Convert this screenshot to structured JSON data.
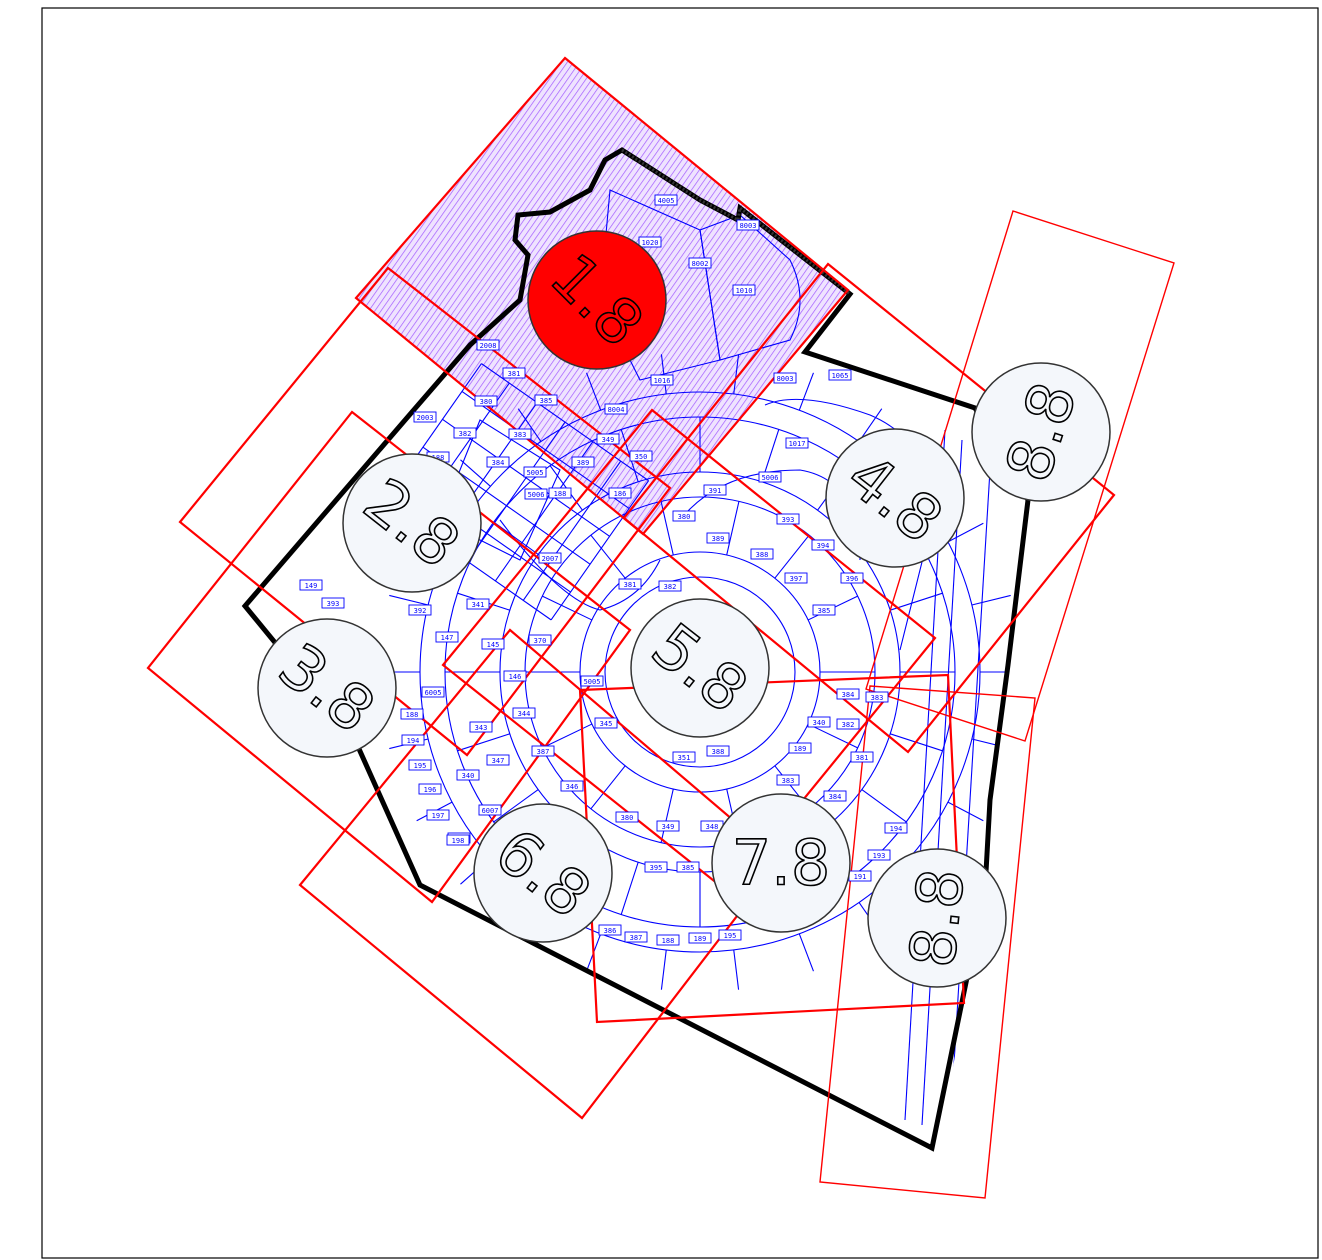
{
  "map": {
    "colors": {
      "paper": "#ffffff",
      "frame": "#000000",
      "boundary": "#000000",
      "parcel": "#0000ff",
      "sheet_outline": "#ff0000",
      "highlight_fill": "#cc66ff",
      "active_bubble": "#ff0000",
      "bubble": "#f4f7fb"
    },
    "sheets": [
      {
        "label": "1.8",
        "active": true
      },
      {
        "label": "2.8",
        "active": false
      },
      {
        "label": "3.8",
        "active": false
      },
      {
        "label": "4.8",
        "active": false
      },
      {
        "label": "5.8",
        "active": false
      },
      {
        "label": "6.8",
        "active": false
      },
      {
        "label": "7.8",
        "active": false
      },
      {
        "label": "8.8",
        "active": false
      },
      {
        "label": "8.8",
        "active": false
      }
    ],
    "lot_labels": [
      "4005",
      "8003",
      "1020",
      "8002",
      "1010",
      "1016",
      "8003",
      "1065",
      "2008",
      "381",
      "380",
      "385",
      "8004",
      "2003",
      "382",
      "383",
      "350",
      "349",
      "384",
      "5005",
      "188",
      "389",
      "188",
      "186",
      "5006",
      "391",
      "380",
      "1017",
      "393",
      "389",
      "388",
      "394",
      "397",
      "396",
      "385",
      "5006",
      "2007",
      "381",
      "382",
      "341",
      "145",
      "146",
      "149",
      "393",
      "392",
      "147",
      "370",
      "5005",
      "6005",
      "344",
      "343",
      "345",
      "351",
      "388",
      "387",
      "346",
      "347",
      "340",
      "6007",
      "8004",
      "188",
      "194",
      "195",
      "196",
      "197",
      "198",
      "189",
      "383",
      "384",
      "381",
      "383",
      "384",
      "382",
      "340",
      "349",
      "348",
      "380",
      "395",
      "385",
      "386",
      "387",
      "188",
      "189",
      "195",
      "194",
      "193",
      "191"
    ]
  }
}
